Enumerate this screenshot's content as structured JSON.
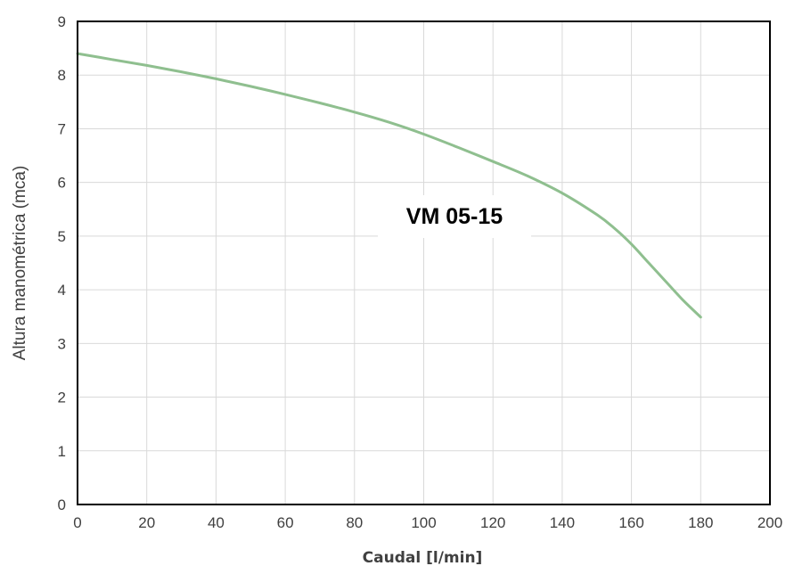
{
  "chart_data": {
    "type": "line",
    "title": "",
    "xlabel": "Caudal [l/min]",
    "ylabel": "Altura manométrica (mca)",
    "xlim": [
      0,
      200
    ],
    "ylim": [
      0,
      9
    ],
    "xticks": [
      "0",
      "20",
      "40",
      "60",
      "80",
      "100",
      "120",
      "140",
      "160",
      "180",
      "200"
    ],
    "yticks": [
      "0",
      "1",
      "2",
      "3",
      "4",
      "5",
      "6",
      "7",
      "8",
      "9"
    ],
    "grid": true,
    "annotation": "VM 05-15",
    "series": [
      {
        "color": "#8fbf8f",
        "x": [
          0,
          10,
          20,
          30,
          40,
          50,
          60,
          70,
          80,
          90,
          100,
          110,
          120,
          130,
          140,
          150,
          155,
          160,
          165,
          170,
          175,
          180
        ],
        "y": [
          8.4,
          8.29,
          8.18,
          8.06,
          7.93,
          7.79,
          7.64,
          7.48,
          7.31,
          7.12,
          6.9,
          6.65,
          6.39,
          6.12,
          5.8,
          5.4,
          5.15,
          4.85,
          4.5,
          4.15,
          3.8,
          3.49
        ]
      }
    ]
  }
}
